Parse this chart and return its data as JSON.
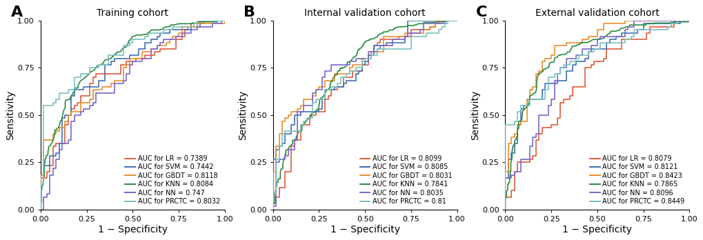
{
  "panels": [
    {
      "label": "A",
      "title": "Training cohort",
      "models": [
        {
          "name": "LR",
          "auc": 0.7389,
          "color": "#E05A38",
          "smooth": false,
          "seed": 101
        },
        {
          "name": "SVM",
          "auc": 0.7442,
          "color": "#3E6EB5",
          "smooth": false,
          "seed": 202
        },
        {
          "name": "GBDT",
          "auc": 0.8118,
          "color": "#E88D2B",
          "smooth": false,
          "seed": 303
        },
        {
          "name": "KNN",
          "auc": 0.8084,
          "color": "#2A8A3E",
          "smooth": true,
          "seed": 404
        },
        {
          "name": "NN",
          "auc": 0.747,
          "color": "#7966CC",
          "smooth": false,
          "seed": 505
        },
        {
          "name": "PRCTC",
          "auc": 0.8032,
          "color": "#7BBFBF",
          "smooth": false,
          "seed": 606
        }
      ]
    },
    {
      "label": "B",
      "title": "Internal validation cohort",
      "models": [
        {
          "name": "LR",
          "auc": 0.8099,
          "color": "#E05A38",
          "smooth": false,
          "seed": 111
        },
        {
          "name": "SVM",
          "auc": 0.8085,
          "color": "#3E6EB5",
          "smooth": false,
          "seed": 222
        },
        {
          "name": "GBDT",
          "auc": 0.8031,
          "color": "#E88D2B",
          "smooth": false,
          "seed": 333
        },
        {
          "name": "KNN",
          "auc": 0.7841,
          "color": "#2A8A3E",
          "smooth": true,
          "seed": 444
        },
        {
          "name": "NN",
          "auc": 0.8035,
          "color": "#7966CC",
          "smooth": false,
          "seed": 555
        },
        {
          "name": "PRCTC",
          "auc": 0.81,
          "color": "#7BBFBF",
          "smooth": false,
          "seed": 666
        }
      ]
    },
    {
      "label": "C",
      "title": "External validation cohort",
      "models": [
        {
          "name": "LR",
          "auc": 0.8079,
          "color": "#E05A38",
          "smooth": false,
          "seed": 121
        },
        {
          "name": "SVM",
          "auc": 0.8121,
          "color": "#3E6EB5",
          "smooth": false,
          "seed": 232
        },
        {
          "name": "GBDT",
          "auc": 0.8423,
          "color": "#E88D2B",
          "smooth": false,
          "seed": 343
        },
        {
          "name": "KNN",
          "auc": 0.7865,
          "color": "#2A8A3E",
          "smooth": true,
          "seed": 454
        },
        {
          "name": "NN",
          "auc": 0.8096,
          "color": "#7966CC",
          "smooth": false,
          "seed": 565
        },
        {
          "name": "PRCTC",
          "auc": 0.8449,
          "color": "#7BBFBF",
          "smooth": false,
          "seed": 676
        }
      ]
    }
  ],
  "xlabel": "1 − Specificity",
  "ylabel": "Sensitivity",
  "xlim": [
    0.0,
    1.0
  ],
  "ylim": [
    0.0,
    1.0
  ],
  "xticks": [
    0.0,
    0.25,
    0.5,
    0.75,
    1.0
  ],
  "yticks": [
    0.0,
    0.25,
    0.5,
    0.75,
    1.0
  ],
  "background_color": "#ffffff",
  "xlabel_fontsize": 10,
  "ylabel_fontsize": 10,
  "tick_fontsize": 8,
  "title_fontsize": 10,
  "legend_fontsize": 7,
  "panel_label_fontsize": 16,
  "linewidth": 1.2,
  "n_samples": 120,
  "n_positives": 60
}
